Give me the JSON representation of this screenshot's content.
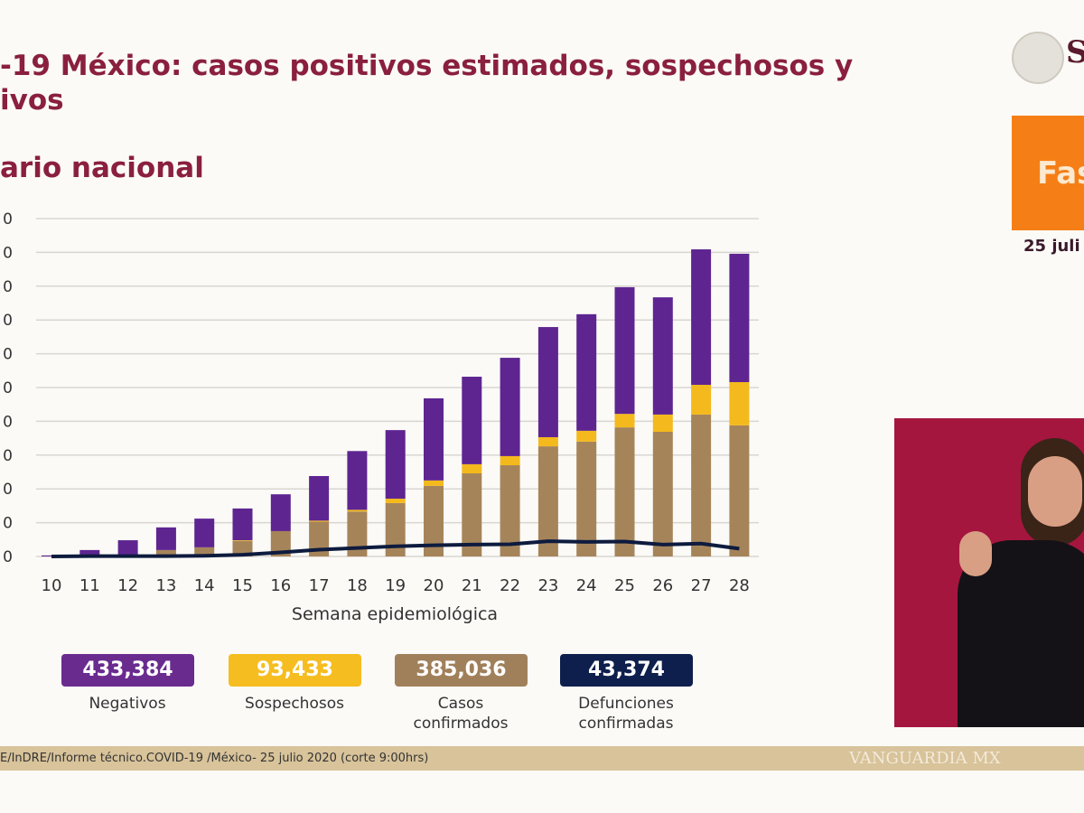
{
  "header": {
    "title_line1": "-19 México: casos positivos estimados, sospechosos y",
    "title_line2": "ivos",
    "subtitle": "ario nacional",
    "logo_text": "S",
    "phase_label": "Fas",
    "date_label": "25 juli"
  },
  "chart_data": {
    "type": "bar",
    "stacked": true,
    "xlabel": "Semana epidemiológica",
    "ylabel": "",
    "ylim": [
      0,
      100000
    ],
    "ytick_labels": [
      "0",
      "0",
      "0",
      "0",
      "0",
      "0",
      "0",
      "0",
      "0",
      "0",
      "0"
    ],
    "grid": true,
    "categories": [
      "10",
      "11",
      "12",
      "13",
      "14",
      "15",
      "16",
      "17",
      "18",
      "19",
      "20",
      "21",
      "22",
      "23",
      "24",
      "25",
      "26",
      "27",
      "28"
    ],
    "series": [
      {
        "name": "Casos confirmados",
        "color": "#a6845a",
        "values": [
          0,
          100,
          300,
          1900,
          2700,
          4600,
          7500,
          10300,
          13300,
          15800,
          20900,
          24600,
          27000,
          32600,
          34000,
          38200,
          36900,
          42000,
          38800
        ]
      },
      {
        "name": "Sospechosos",
        "color": "#f4b91c",
        "values": [
          0,
          0,
          0,
          0,
          0,
          200,
          0,
          300,
          500,
          1300,
          1600,
          2700,
          2700,
          2700,
          3200,
          4000,
          5100,
          8800,
          12800
        ]
      },
      {
        "name": "Negativos",
        "color": "#5e2591",
        "values": [
          300,
          1800,
          4500,
          6700,
          8500,
          9400,
          10900,
          13200,
          17400,
          20300,
          24300,
          25900,
          29100,
          32600,
          34500,
          37500,
          34700,
          40100,
          38000
        ]
      }
    ],
    "line": {
      "name": "Defunciones confirmadas",
      "color": "#0d1b3e",
      "values": [
        0,
        100,
        100,
        100,
        200,
        500,
        1200,
        2000,
        2500,
        3000,
        3300,
        3500,
        3600,
        4500,
        4300,
        4400,
        3500,
        3800,
        2300
      ]
    }
  },
  "legend": [
    {
      "value": "433,384",
      "label": "Negativos",
      "color": "#6a2b8f"
    },
    {
      "value": "93,433",
      "label": "Sospechosos",
      "color": "#f5bd1f"
    },
    {
      "value": "385,036",
      "label": "Casos\nconfirmados",
      "color": "#a0805a"
    },
    {
      "value": "43,374",
      "label": "Defunciones\nconfirmadas",
      "color": "#0f1f4d"
    }
  ],
  "footer": {
    "source": "E/InDRE/Informe técnico.COVID-19 /México- 25 julio 2020 (corte 9:00hrs)",
    "watermark": "VANGUARDIA MX"
  }
}
